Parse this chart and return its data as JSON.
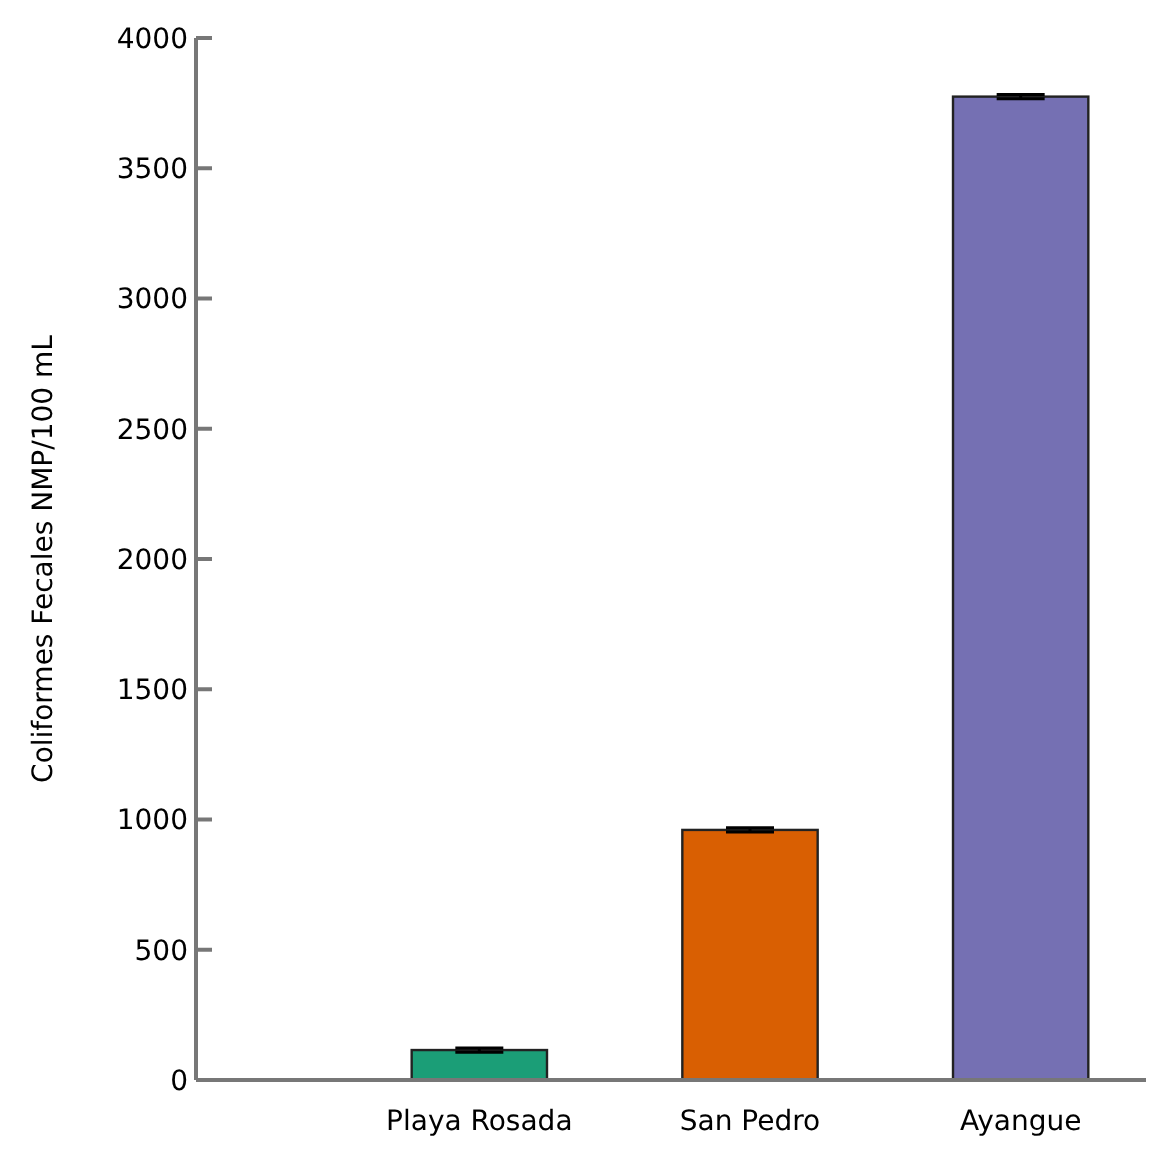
{
  "chart_data": {
    "type": "bar",
    "ylabel": "Coliformes Fecales NMP/100 mL",
    "categories": [
      "Playa Rosada",
      "San Pedro",
      "Ayangue"
    ],
    "values": [
      115,
      960,
      3775
    ],
    "colors": [
      "#1b9e77",
      "#d95f02",
      "#7570b3"
    ],
    "errors": [
      8,
      8,
      8
    ],
    "ylim": [
      0,
      4000
    ],
    "yticks": [
      0,
      500,
      1000,
      1500,
      2000,
      2500,
      3000,
      3500,
      4000
    ],
    "grid": false
  }
}
